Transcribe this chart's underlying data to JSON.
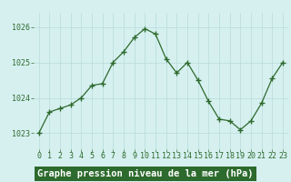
{
  "x": [
    0,
    1,
    2,
    3,
    4,
    5,
    6,
    7,
    8,
    9,
    10,
    11,
    12,
    13,
    14,
    15,
    16,
    17,
    18,
    19,
    20,
    21,
    22,
    23
  ],
  "y": [
    1023.0,
    1023.6,
    1023.7,
    1023.8,
    1024.0,
    1024.35,
    1024.4,
    1025.0,
    1025.3,
    1025.7,
    1025.95,
    1025.8,
    1025.1,
    1024.7,
    1025.0,
    1024.5,
    1023.9,
    1023.4,
    1023.35,
    1023.1,
    1023.35,
    1023.85,
    1024.55,
    1025.0
  ],
  "line_color": "#2d6a2d",
  "marker": "+",
  "marker_size": 4,
  "marker_lw": 1.0,
  "bg_color": "#d6f0f0",
  "grid_color": "#b8dada",
  "xlabel": "Graphe pression niveau de la mer (hPa)",
  "xlabel_fontsize": 7.5,
  "ylabel_ticks": [
    1023,
    1024,
    1025,
    1026
  ],
  "ylim": [
    1022.55,
    1026.4
  ],
  "xlim": [
    -0.5,
    23.5
  ],
  "tick_color": "#2d6a2d",
  "tick_fontsize": 6,
  "xlabel_color": "#2d6a2d",
  "xlabel_bg": "#2d6a2d",
  "xlabel_text_color": "#ffffff",
  "line_width": 0.9
}
